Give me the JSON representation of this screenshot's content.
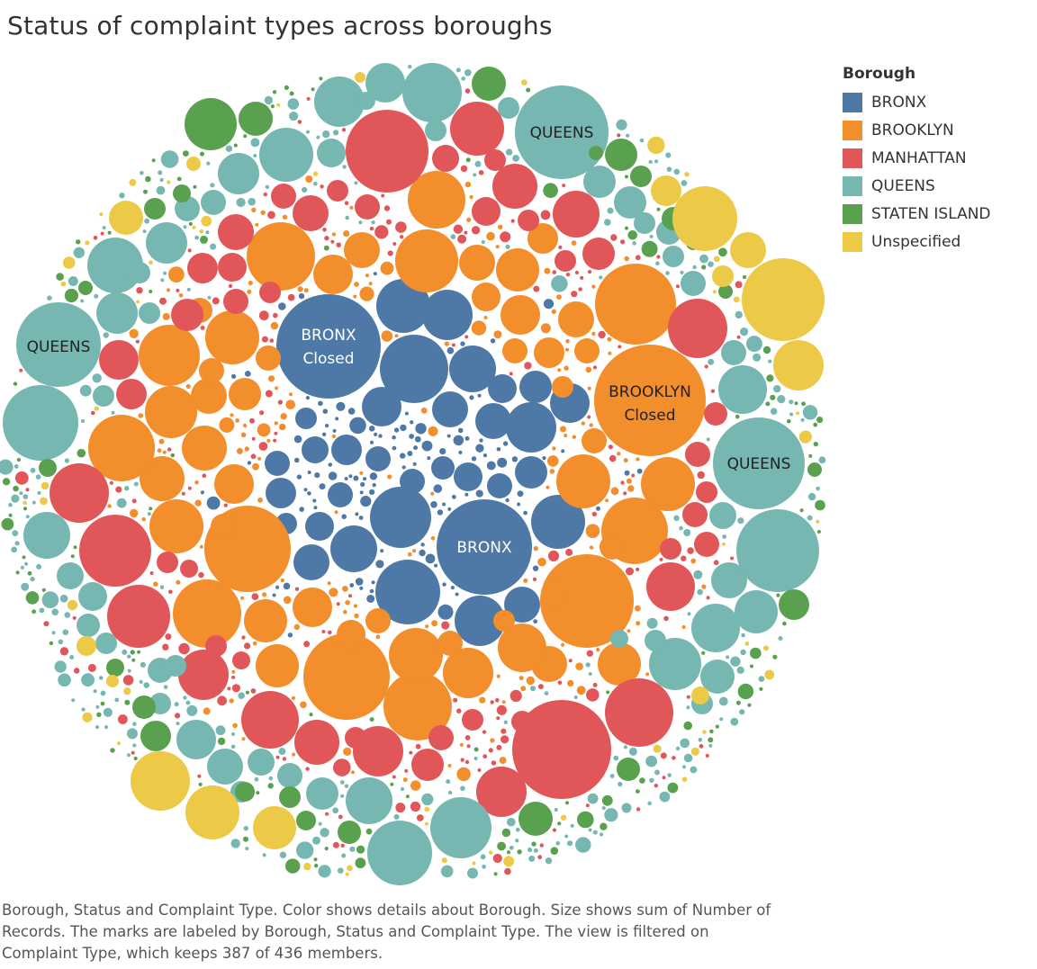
{
  "chart_data": {
    "type": "packed-bubble",
    "title": "Status of complaint types across boroughs",
    "legend_title": "Borough",
    "legend_position": "top-right",
    "legend": [
      {
        "name": "BRONX",
        "color": "#4e79a7"
      },
      {
        "name": "BROOKLYN",
        "color": "#f28e2b"
      },
      {
        "name": "MANHATTAN",
        "color": "#e15759"
      },
      {
        "name": "QUEENS",
        "color": "#76b7b2"
      },
      {
        "name": "STATEN ISLAND",
        "color": "#59a14f"
      },
      {
        "name": "Unspecified",
        "color": "#edc948"
      }
    ],
    "labeled_bubbles": [
      {
        "borough": "BRONX",
        "lines": [
          "BRONX",
          "Closed"
        ]
      },
      {
        "borough": "BROOKLYN",
        "lines": [
          "BROOKLYN",
          "Closed"
        ]
      },
      {
        "borough": "BRONX",
        "lines": [
          "BRONX"
        ]
      },
      {
        "borough": "QUEENS",
        "lines": [
          "QUEENS"
        ]
      },
      {
        "borough": "QUEENS",
        "lines": [
          "QUEENS"
        ]
      },
      {
        "borough": "QUEENS",
        "lines": [
          "QUEENS"
        ]
      }
    ]
  },
  "caption_lines": [
    "Borough, Status and Complaint Type.  Color shows details about Borough.  Size shows sum of Number of",
    "Records.  The marks are labeled by Borough, Status and Complaint Type. The view is filtered on",
    "Complaint Type, which keeps 387 of 436 members."
  ]
}
